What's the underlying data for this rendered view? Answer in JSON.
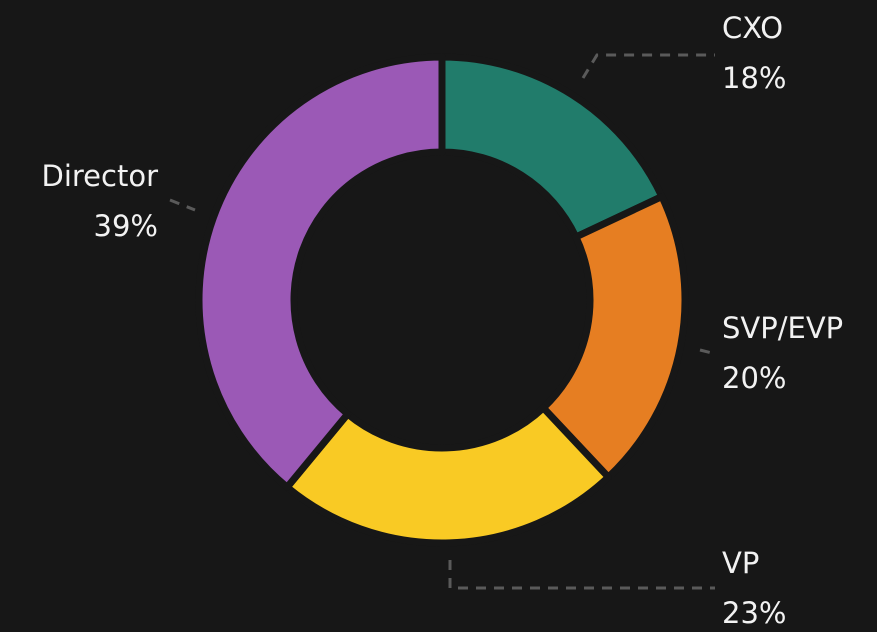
{
  "chart_data": {
    "type": "donut",
    "categories": [
      "CXO",
      "SVP/EVP",
      "VP",
      "Director"
    ],
    "values": [
      18,
      20,
      23,
      39
    ],
    "value_labels": [
      "18%",
      "20%",
      "23%",
      "39%"
    ],
    "colors": [
      "#217c6b",
      "#e67e22",
      "#f9ca24",
      "#9b59b6"
    ]
  }
}
